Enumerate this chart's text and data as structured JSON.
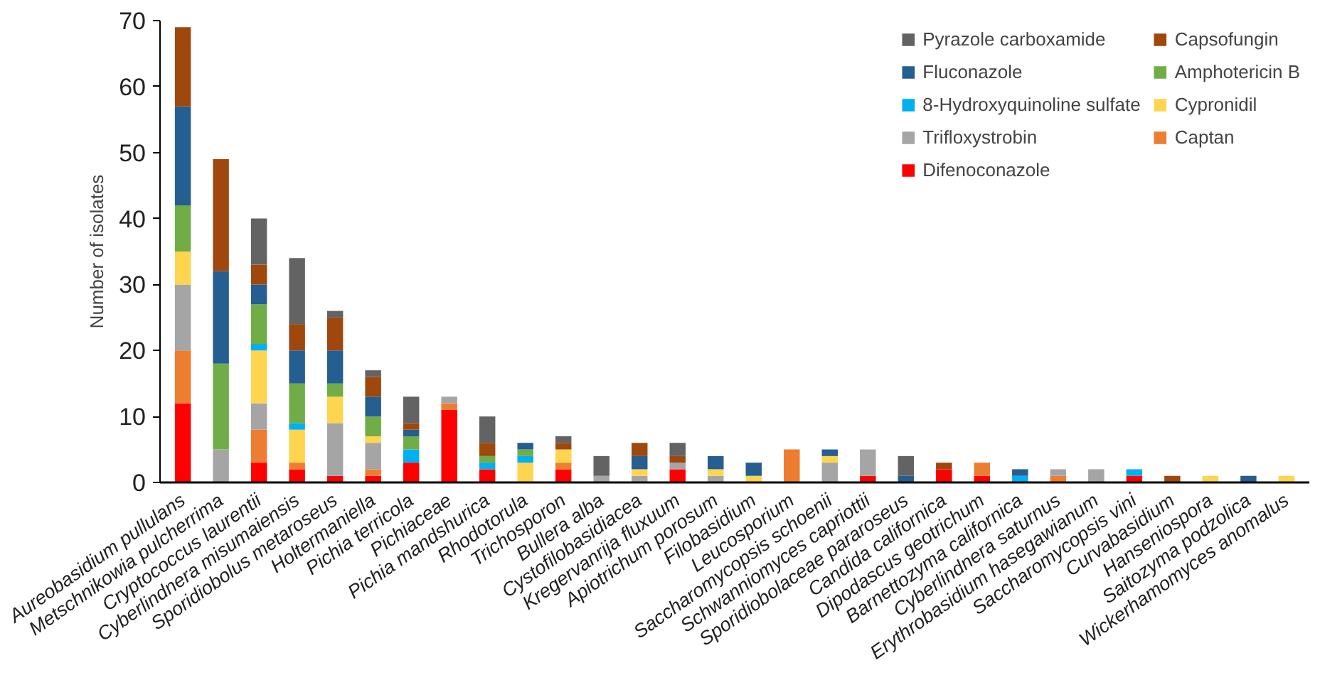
{
  "chart_data": {
    "type": "bar",
    "stacked": true,
    "ylabel": "Number of isolates",
    "categories": [
      "Aureobasidium pullulans",
      "Metschnikowia pulcherrima",
      "Cryptococcus laurentii",
      "Cyberlindnera misumaiensis",
      "Sporidiobolus metaroseus",
      "Holtermaniella",
      "Pichia terricola",
      "Pichiaceae",
      "Pichia mandshurica",
      "Rhodotorula",
      "Trichosporon",
      "Bullera alba",
      "Cystofilobasidiacea",
      "Kregervanrija fluxuum",
      "Apiotrichum porosum",
      "Filobasidium",
      "Leucosporium",
      "Saccharomycopsis schoenii",
      "Schwanniomyces capriottii",
      "Sporidiobolaceae pararoseus",
      "Candida californica",
      "Dipodascus geotrichum",
      "Barnettozyma californica",
      "Cyberlindnera saturnus",
      "Erythrobasidium hasegawianum",
      "Saccharomycopsis vini",
      "Curvabasidium",
      "Hanseniospora",
      "Saitozyma podzolica",
      "Wickerhamomyces anomalus"
    ],
    "series": [
      {
        "name": "Difenoconazole",
        "color": "#ff0000",
        "values": [
          12,
          0,
          3,
          2,
          1,
          1,
          3,
          11,
          2,
          0,
          2,
          0,
          0,
          2,
          0,
          0,
          0,
          0,
          1,
          0,
          2,
          1,
          0,
          0,
          0,
          1,
          0,
          0,
          0,
          0
        ]
      },
      {
        "name": "Captan",
        "color": "#ed7d31",
        "values": [
          8,
          0,
          5,
          1,
          0,
          1,
          0,
          1,
          0,
          0,
          1,
          0,
          0,
          0,
          0,
          0,
          5,
          0,
          0,
          0,
          0,
          2,
          0,
          1,
          0,
          0,
          0,
          0,
          0,
          0
        ]
      },
      {
        "name": "Trifloxystrobin",
        "color": "#a5a5a5",
        "values": [
          10,
          5,
          4,
          0,
          8,
          4,
          0,
          1,
          0,
          0,
          0,
          1,
          1,
          1,
          1,
          0,
          0,
          3,
          4,
          0,
          0,
          0,
          0,
          1,
          2,
          0,
          0,
          0,
          0,
          0
        ]
      },
      {
        "name": "Cypronidil",
        "color": "#ffd44f",
        "values": [
          5,
          0,
          8,
          5,
          4,
          1,
          0,
          0,
          0,
          3,
          2,
          0,
          1,
          0,
          1,
          1,
          0,
          1,
          0,
          0,
          0,
          0,
          0,
          0,
          0,
          0,
          0,
          1,
          0,
          1
        ]
      },
      {
        "name": "8-Hydroxyquinoline sulfate",
        "color": "#00b0f0",
        "values": [
          0,
          0,
          1,
          1,
          0,
          0,
          2,
          0,
          1,
          1,
          0,
          0,
          0,
          0,
          0,
          0,
          0,
          0,
          0,
          0,
          0,
          0,
          1,
          0,
          0,
          1,
          0,
          0,
          0,
          0
        ]
      },
      {
        "name": "Amphotericin B",
        "color": "#70ad47",
        "values": [
          7,
          13,
          6,
          6,
          2,
          3,
          2,
          0,
          1,
          1,
          0,
          0,
          0,
          0,
          0,
          0,
          0,
          0,
          0,
          0,
          0,
          0,
          0,
          0,
          0,
          0,
          0,
          0,
          0,
          0
        ]
      },
      {
        "name": "Fluconazole",
        "color": "#255e91",
        "values": [
          15,
          14,
          3,
          5,
          5,
          3,
          1,
          0,
          0,
          1,
          0,
          0,
          2,
          0,
          2,
          2,
          0,
          1,
          0,
          1,
          0,
          0,
          1,
          0,
          0,
          0,
          0,
          0,
          1,
          0
        ]
      },
      {
        "name": "Capsofungin",
        "color": "#9e480e",
        "values": [
          12,
          17,
          3,
          4,
          5,
          3,
          1,
          0,
          2,
          0,
          1,
          0,
          2,
          1,
          0,
          0,
          0,
          0,
          0,
          0,
          1,
          0,
          0,
          0,
          0,
          0,
          1,
          0,
          0,
          0
        ]
      },
      {
        "name": "Pyrazole carboxamide",
        "color": "#636363",
        "values": [
          0,
          0,
          7,
          10,
          1,
          1,
          4,
          0,
          4,
          0,
          1,
          3,
          0,
          2,
          0,
          0,
          0,
          0,
          0,
          3,
          0,
          0,
          0,
          0,
          0,
          0,
          0,
          0,
          0,
          0
        ]
      }
    ],
    "ylim": [
      0,
      70
    ],
    "yticks": [
      0,
      10,
      20,
      30,
      40,
      50,
      60,
      70
    ],
    "grid": false,
    "legend": "top right"
  }
}
